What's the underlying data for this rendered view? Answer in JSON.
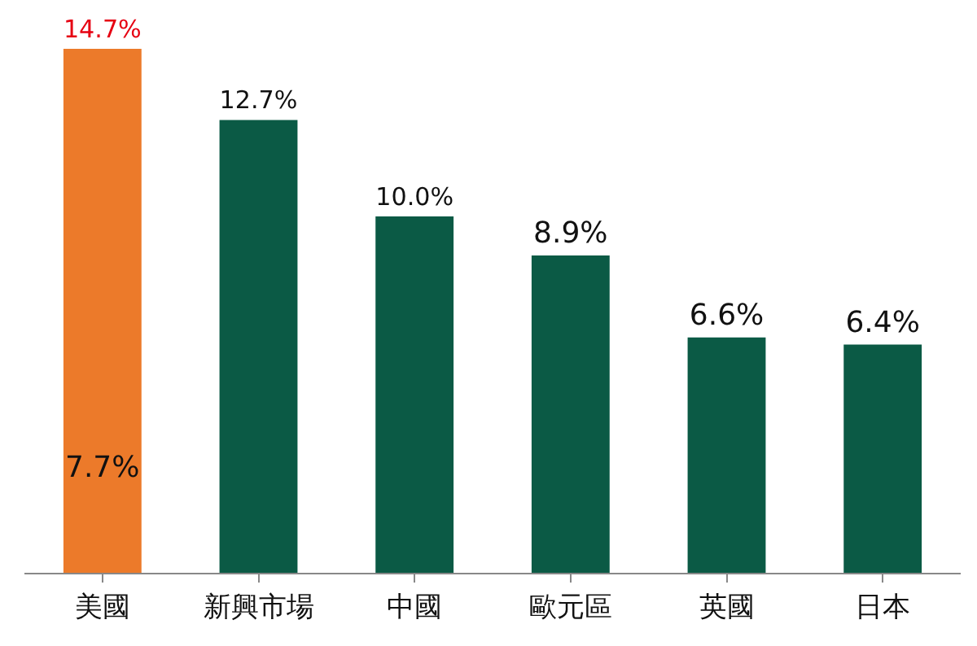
{
  "chart_data": {
    "type": "bar",
    "categories": [
      "美國",
      "新興市場",
      "中國",
      "歐元區",
      "英國",
      "日本"
    ],
    "values": [
      14.7,
      12.7,
      10.0,
      8.9,
      6.6,
      6.4
    ],
    "colors": [
      "#ec7a2a",
      "#0b5a45",
      "#0b5a45",
      "#0b5a45",
      "#0b5a45",
      "#0b5a45"
    ],
    "value_labels": [
      "14.7%",
      "12.7%",
      "10.0%",
      "8.9%",
      "6.6%",
      "6.4%"
    ],
    "annotations": [
      "7.7%"
    ],
    "legend": false
  }
}
